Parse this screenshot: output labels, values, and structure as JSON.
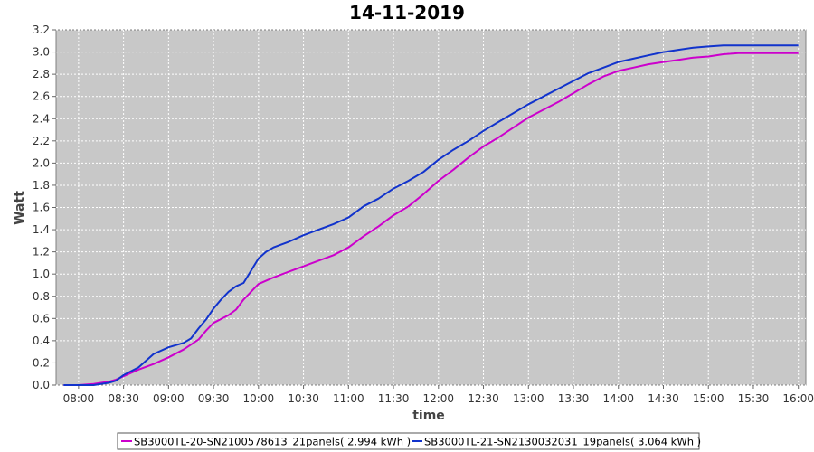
{
  "chart_data": {
    "type": "line",
    "title": "14-11-2019",
    "xlabel": "time",
    "ylabel": "Watt",
    "ylim": [
      0,
      3.2
    ],
    "xlim": [
      "07:45",
      "16:05"
    ],
    "y_ticks": [
      "0.0",
      "0.2",
      "0.4",
      "0.6",
      "0.8",
      "1.0",
      "1.2",
      "1.4",
      "1.6",
      "1.8",
      "2.0",
      "2.2",
      "2.4",
      "2.6",
      "2.8",
      "3.0",
      "3.2"
    ],
    "x_ticks": [
      "08:00",
      "08:30",
      "09:00",
      "09:30",
      "10:00",
      "10:30",
      "11:00",
      "11:30",
      "12:00",
      "12:30",
      "13:00",
      "13:30",
      "14:00",
      "14:30",
      "15:00",
      "15:30",
      "16:00"
    ],
    "grid": true,
    "legend_position": "bottom",
    "series": [
      {
        "name": "SB3000TL-20-SN2100578613_21panels( 2.994 kWh )",
        "color": "#cc00cc",
        "x": [
          "07:50",
          "08:00",
          "08:10",
          "08:20",
          "08:25",
          "08:30",
          "08:40",
          "08:50",
          "09:00",
          "09:10",
          "09:20",
          "09:25",
          "09:30",
          "09:40",
          "09:45",
          "09:50",
          "10:00",
          "10:10",
          "10:20",
          "10:30",
          "10:40",
          "10:50",
          "11:00",
          "11:10",
          "11:20",
          "11:30",
          "11:40",
          "11:50",
          "12:00",
          "12:10",
          "12:20",
          "12:30",
          "12:40",
          "12:50",
          "13:00",
          "13:10",
          "13:20",
          "13:30",
          "13:40",
          "13:50",
          "14:00",
          "14:10",
          "14:20",
          "14:30",
          "14:40",
          "14:50",
          "15:00",
          "15:10",
          "15:20",
          "15:30",
          "15:40",
          "15:50",
          "16:00"
        ],
        "values": [
          0.0,
          0.0,
          0.01,
          0.03,
          0.05,
          0.08,
          0.14,
          0.19,
          0.25,
          0.32,
          0.41,
          0.49,
          0.56,
          0.63,
          0.68,
          0.77,
          0.91,
          0.97,
          1.02,
          1.07,
          1.12,
          1.17,
          1.24,
          1.34,
          1.43,
          1.53,
          1.61,
          1.72,
          1.84,
          1.94,
          2.05,
          2.15,
          2.23,
          2.32,
          2.41,
          2.48,
          2.55,
          2.63,
          2.71,
          2.78,
          2.83,
          2.86,
          2.89,
          2.91,
          2.93,
          2.95,
          2.96,
          2.98,
          2.99,
          2.99,
          2.99,
          2.99,
          2.99
        ]
      },
      {
        "name": "SB3000TL-21-SN2130032031_19panels( 3.064 kWh )",
        "color": "#1133cc",
        "x": [
          "07:50",
          "08:00",
          "08:10",
          "08:20",
          "08:25",
          "08:30",
          "08:40",
          "08:50",
          "09:00",
          "09:10",
          "09:15",
          "09:20",
          "09:25",
          "09:30",
          "09:35",
          "09:40",
          "09:45",
          "09:50",
          "10:00",
          "10:05",
          "10:10",
          "10:20",
          "10:30",
          "10:40",
          "10:50",
          "11:00",
          "11:10",
          "11:20",
          "11:30",
          "11:40",
          "11:50",
          "12:00",
          "12:10",
          "12:20",
          "12:30",
          "12:40",
          "12:50",
          "13:00",
          "13:10",
          "13:20",
          "13:30",
          "13:40",
          "13:50",
          "14:00",
          "14:10",
          "14:20",
          "14:30",
          "14:40",
          "14:50",
          "15:00",
          "15:10",
          "15:20",
          "15:30",
          "15:40",
          "15:50",
          "16:00"
        ],
        "values": [
          0.0,
          0.0,
          0.0,
          0.02,
          0.04,
          0.09,
          0.16,
          0.28,
          0.34,
          0.38,
          0.42,
          0.51,
          0.59,
          0.69,
          0.77,
          0.84,
          0.89,
          0.92,
          1.14,
          1.2,
          1.24,
          1.29,
          1.35,
          1.4,
          1.45,
          1.51,
          1.61,
          1.68,
          1.77,
          1.84,
          1.92,
          2.03,
          2.12,
          2.2,
          2.29,
          2.37,
          2.45,
          2.53,
          2.6,
          2.67,
          2.74,
          2.81,
          2.86,
          2.91,
          2.94,
          2.97,
          3.0,
          3.02,
          3.04,
          3.05,
          3.06,
          3.06,
          3.06,
          3.06,
          3.06,
          3.06
        ]
      }
    ]
  }
}
